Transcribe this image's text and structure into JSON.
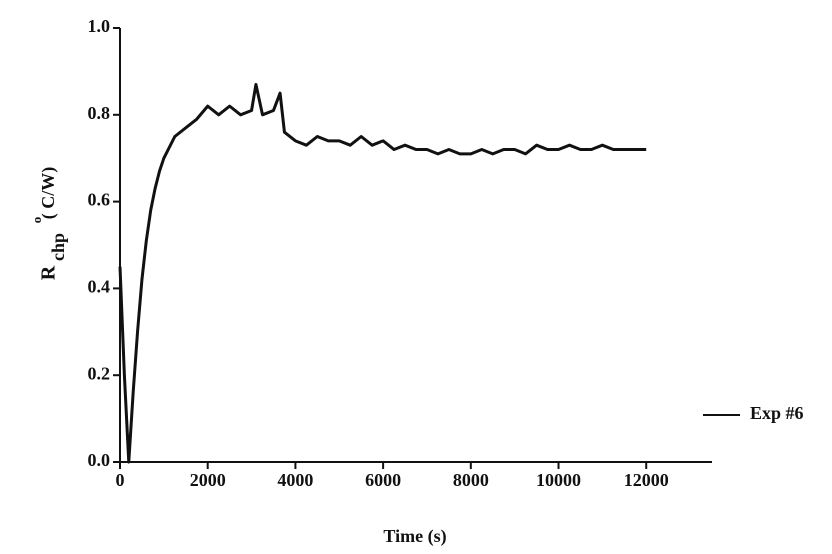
{
  "chart_data": {
    "type": "line",
    "xlabel": "Time (s)",
    "ylabel_main": "R",
    "ylabel_sub": "chp",
    "ylabel_sup": "o",
    "ylabel_unit": "( C/W)",
    "xlim": [
      0,
      13500
    ],
    "ylim": [
      0,
      1
    ],
    "xticks": [
      0,
      2000,
      4000,
      6000,
      8000,
      10000,
      12000
    ],
    "yticks": [
      {
        "value": 0,
        "label": "0.0"
      },
      {
        "value": 0.2,
        "label": "0.2"
      },
      {
        "value": 0.4,
        "label": "0.4"
      },
      {
        "value": 0.6,
        "label": "0.6"
      },
      {
        "value": 0.8,
        "label": "0.8"
      },
      {
        "value": 1,
        "label": "1.0"
      }
    ],
    "legend": "right",
    "x": [
      0,
      100,
      200,
      300,
      400,
      500,
      600,
      700,
      800,
      900,
      1000,
      1250,
      1500,
      1750,
      2000,
      2250,
      2500,
      2750,
      3000,
      3100,
      3250,
      3500,
      3650,
      3750,
      4000,
      4250,
      4500,
      4750,
      5000,
      5250,
      5500,
      5750,
      6000,
      6250,
      6500,
      6750,
      7000,
      7250,
      7500,
      7750,
      8000,
      8250,
      8500,
      8750,
      9000,
      9250,
      9500,
      9750,
      10000,
      10250,
      10500,
      10750,
      11000,
      11250,
      11500,
      11750,
      12000
    ],
    "series": [
      {
        "name": "Exp #6",
        "color": "#111111",
        "values": [
          0.45,
          0.2,
          0.0,
          0.16,
          0.3,
          0.42,
          0.51,
          0.58,
          0.63,
          0.67,
          0.7,
          0.75,
          0.77,
          0.79,
          0.82,
          0.8,
          0.82,
          0.8,
          0.81,
          0.87,
          0.8,
          0.81,
          0.85,
          0.76,
          0.74,
          0.73,
          0.75,
          0.74,
          0.74,
          0.73,
          0.75,
          0.73,
          0.74,
          0.72,
          0.73,
          0.72,
          0.72,
          0.71,
          0.72,
          0.71,
          0.71,
          0.72,
          0.71,
          0.72,
          0.72,
          0.71,
          0.73,
          0.72,
          0.72,
          0.73,
          0.72,
          0.72,
          0.73,
          0.72,
          0.72,
          0.72,
          0.72
        ]
      }
    ]
  }
}
